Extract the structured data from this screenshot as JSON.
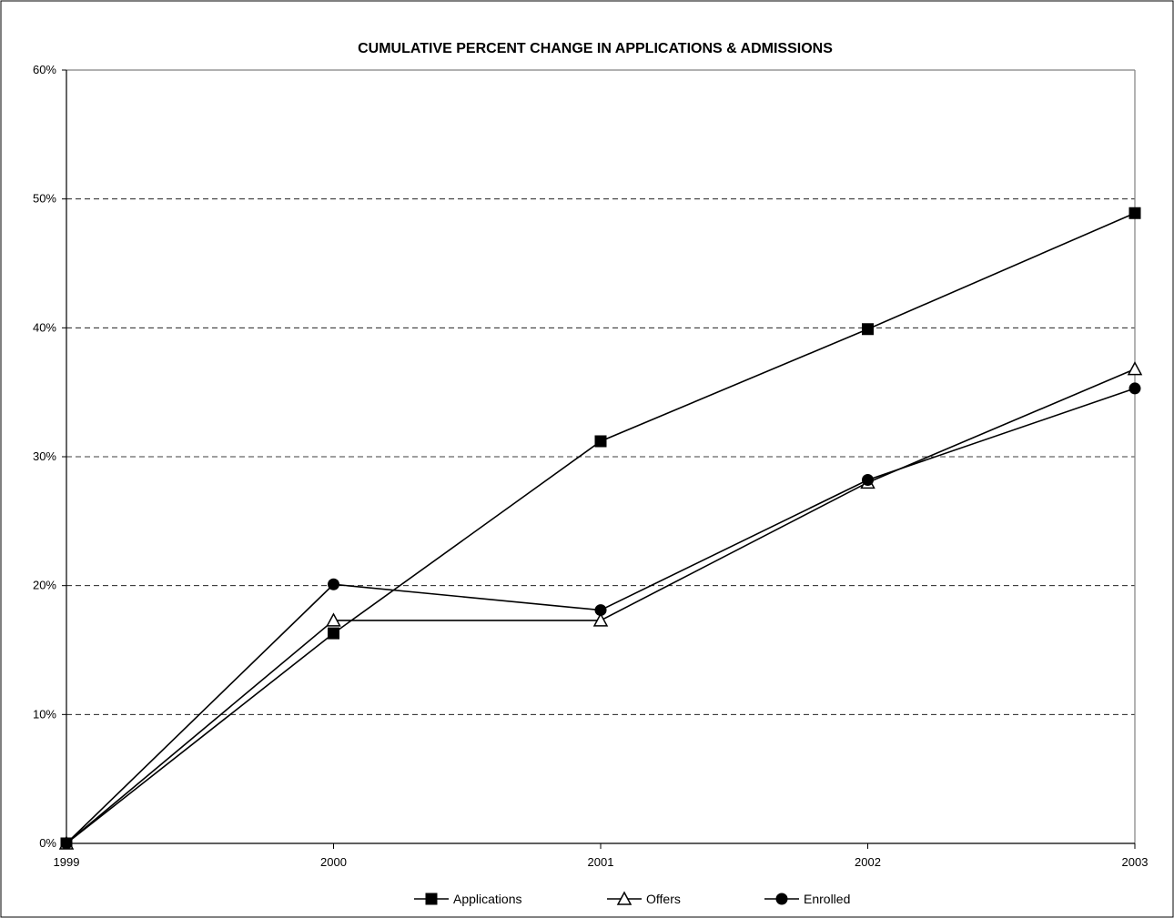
{
  "chart_data": {
    "type": "line",
    "title": "CUMULATIVE PERCENT CHANGE IN APPLICATIONS & ADMISSIONS",
    "xlabel": "",
    "ylabel": "",
    "categories": [
      "1999",
      "2000",
      "2001",
      "2002",
      "2003"
    ],
    "ylim": [
      0,
      60
    ],
    "yticks": [
      0,
      10,
      20,
      30,
      40,
      50,
      60
    ],
    "ytick_labels": [
      "0%",
      "10%",
      "20%",
      "30%",
      "40%",
      "50%",
      "60%"
    ],
    "grid": "horizontal dashed",
    "legend_position": "bottom",
    "series": [
      {
        "name": "Applications",
        "marker": "filled-square",
        "values": [
          0,
          16.3,
          31.2,
          39.9,
          48.9
        ]
      },
      {
        "name": "Offers",
        "marker": "open-triangle",
        "values": [
          0,
          17.3,
          17.3,
          28.0,
          36.8
        ]
      },
      {
        "name": "Enrolled",
        "marker": "filled-circle",
        "values": [
          0,
          20.1,
          18.1,
          28.2,
          35.3
        ]
      }
    ],
    "colors": {
      "line": "#000000",
      "grid": "#000000",
      "plot_border": "#808080"
    }
  }
}
